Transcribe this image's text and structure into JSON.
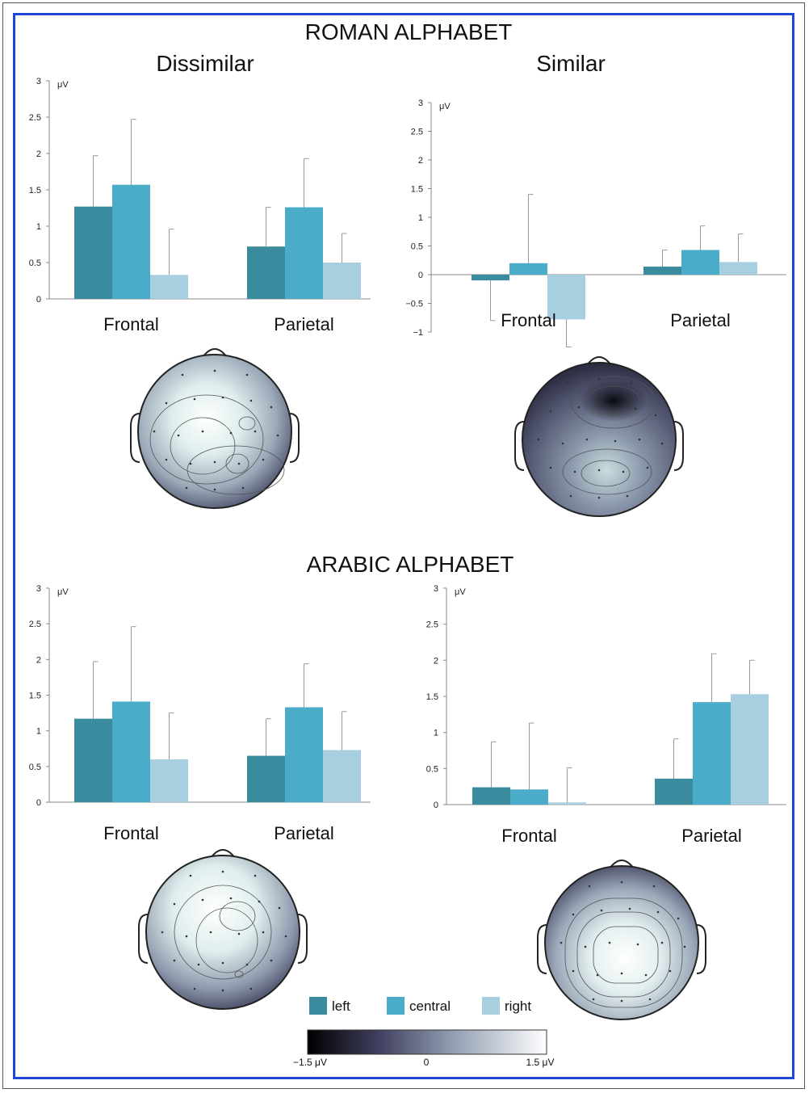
{
  "titles": {
    "roman": "ROMAN ALPHABET",
    "arabic": "ARABIC ALPHABET",
    "dissimilar": "Dissimilar",
    "similar": "Similar"
  },
  "colors": {
    "left": "#3a8b9e",
    "central": "#4aacc8",
    "right": "#a8cfdf"
  },
  "legend": {
    "left": "left",
    "central": "central",
    "right": "right"
  },
  "colorbar": {
    "min_label": "−1.5 μV",
    "mid_label": "0",
    "max_label": "1.5 μV"
  },
  "chart_data": [
    {
      "type": "bar",
      "panel": "roman-dissimilar",
      "categories": [
        "Frontal",
        "Parietal"
      ],
      "ylim": [
        0,
        3
      ],
      "yticks": [
        {
          "v": 0,
          "t": "0"
        },
        {
          "v": 0.5,
          "t": "0.5"
        },
        {
          "v": 1,
          "t": "1"
        },
        {
          "v": 1.5,
          "t": "1.5"
        },
        {
          "v": 2,
          "t": "2"
        },
        {
          "v": 2.5,
          "t": "2.5"
        },
        {
          "v": 3,
          "t": "3"
        }
      ],
      "ylabel": "μV",
      "series": [
        {
          "name": "left",
          "values": [
            1.27,
            0.72
          ],
          "errors": [
            0.7,
            0.54
          ]
        },
        {
          "name": "central",
          "values": [
            1.57,
            1.26
          ],
          "errors": [
            0.9,
            0.67
          ]
        },
        {
          "name": "right",
          "values": [
            0.33,
            0.5
          ],
          "errors": [
            0.63,
            0.4
          ]
        }
      ]
    },
    {
      "type": "bar",
      "panel": "roman-similar",
      "categories": [
        "Frontal",
        "Parietal"
      ],
      "ylim": [
        -1,
        3
      ],
      "yticks": [
        {
          "v": -1,
          "t": "−1"
        },
        {
          "v": -0.5,
          "t": "−0.5"
        },
        {
          "v": 0,
          "t": "0"
        },
        {
          "v": 0.5,
          "t": "0.5"
        },
        {
          "v": 1,
          "t": "1"
        },
        {
          "v": 1.5,
          "t": "1.5"
        },
        {
          "v": 2,
          "t": "2"
        },
        {
          "v": 2.5,
          "t": "2.5"
        },
        {
          "v": 3,
          "t": "3"
        }
      ],
      "ylabel": "μV",
      "series": [
        {
          "name": "left",
          "values": [
            -0.1,
            0.14
          ],
          "errors": [
            0.7,
            0.29
          ]
        },
        {
          "name": "central",
          "values": [
            0.2,
            0.43
          ],
          "errors": [
            1.2,
            0.42
          ]
        },
        {
          "name": "right",
          "values": [
            -0.78,
            0.22
          ],
          "errors": [
            0.48,
            0.49
          ]
        }
      ]
    },
    {
      "type": "bar",
      "panel": "arabic-dissimilar",
      "categories": [
        "Frontal",
        "Parietal"
      ],
      "ylim": [
        0,
        3
      ],
      "yticks": [
        {
          "v": 0,
          "t": "0"
        },
        {
          "v": 0.5,
          "t": "0.5"
        },
        {
          "v": 1,
          "t": "1"
        },
        {
          "v": 1.5,
          "t": "1.5"
        },
        {
          "v": 2,
          "t": "2"
        },
        {
          "v": 2.5,
          "t": "2.5"
        },
        {
          "v": 3,
          "t": "3"
        }
      ],
      "ylabel": "μV",
      "series": [
        {
          "name": "left",
          "values": [
            1.17,
            0.65
          ],
          "errors": [
            0.8,
            0.52
          ]
        },
        {
          "name": "central",
          "values": [
            1.41,
            1.33
          ],
          "errors": [
            1.05,
            0.61
          ]
        },
        {
          "name": "right",
          "values": [
            0.6,
            0.73
          ],
          "errors": [
            0.65,
            0.54
          ]
        }
      ]
    },
    {
      "type": "bar",
      "panel": "arabic-similar",
      "categories": [
        "Frontal",
        "Parietal"
      ],
      "ylim": [
        0,
        3
      ],
      "yticks": [
        {
          "v": 0,
          "t": "0"
        },
        {
          "v": 0.5,
          "t": "0.5"
        },
        {
          "v": 1,
          "t": "1"
        },
        {
          "v": 1.5,
          "t": "1.5"
        },
        {
          "v": 2,
          "t": "2"
        },
        {
          "v": 2.5,
          "t": "2.5"
        },
        {
          "v": 3,
          "t": "3"
        }
      ],
      "ylabel": "μV",
      "series": [
        {
          "name": "left",
          "values": [
            0.24,
            0.36
          ],
          "errors": [
            0.63,
            0.55
          ]
        },
        {
          "name": "central",
          "values": [
            0.21,
            1.42
          ],
          "errors": [
            0.92,
            0.67
          ]
        },
        {
          "name": "right",
          "values": [
            0.03,
            1.53
          ],
          "errors": [
            0.48,
            0.47
          ]
        }
      ]
    }
  ]
}
